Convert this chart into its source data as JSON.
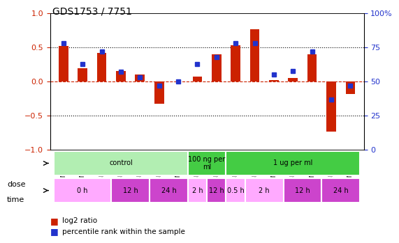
{
  "title": "GDS1753 / 7751",
  "samples": [
    "GSM93635",
    "GSM93638",
    "GSM93649",
    "GSM93641",
    "GSM93644",
    "GSM93645",
    "GSM93650",
    "GSM93646",
    "GSM93648",
    "GSM93642",
    "GSM93643",
    "GSM93639",
    "GSM93647",
    "GSM93637",
    "GSM93640",
    "GSM93636"
  ],
  "log2_ratio": [
    0.52,
    0.2,
    0.42,
    0.15,
    0.1,
    -0.33,
    0.0,
    0.07,
    0.4,
    0.53,
    0.77,
    0.02,
    0.05,
    0.4,
    -0.73,
    -0.18
  ],
  "pct_rank": [
    78,
    63,
    72,
    57,
    53,
    47,
    50,
    63,
    68,
    78,
    78,
    55,
    58,
    72,
    37,
    47
  ],
  "dose_groups": [
    {
      "label": "control",
      "start": 0,
      "end": 7,
      "color": "#b2eeb2"
    },
    {
      "label": "100 ng per\nml",
      "start": 7,
      "end": 9,
      "color": "#44cc44"
    },
    {
      "label": "1 ug per ml",
      "start": 9,
      "end": 16,
      "color": "#44cc44"
    }
  ],
  "time_groups": [
    {
      "label": "0 h",
      "start": 0,
      "end": 3,
      "color": "#ffaaff"
    },
    {
      "label": "12 h",
      "start": 3,
      "end": 5,
      "color": "#cc44cc"
    },
    {
      "label": "24 h",
      "start": 5,
      "end": 7,
      "color": "#cc44cc"
    },
    {
      "label": "2 h",
      "start": 7,
      "end": 8,
      "color": "#ffaaff"
    },
    {
      "label": "12 h",
      "start": 8,
      "end": 9,
      "color": "#cc44cc"
    },
    {
      "label": "0.5 h",
      "start": 9,
      "end": 10,
      "color": "#ffaaff"
    },
    {
      "label": "2 h",
      "start": 10,
      "end": 12,
      "color": "#ffaaff"
    },
    {
      "label": "12 h",
      "start": 12,
      "end": 14,
      "color": "#cc44cc"
    },
    {
      "label": "24 h",
      "start": 14,
      "end": 16,
      "color": "#cc44cc"
    }
  ],
  "bar_color": "#cc2200",
  "dot_color": "#2233cc",
  "ylim": [
    -1,
    1
  ],
  "y2lim": [
    0,
    100
  ],
  "yticks": [
    -1,
    -0.5,
    0,
    0.5,
    1
  ],
  "y2ticks": [
    0,
    25,
    50,
    75,
    100
  ],
  "hlines": [
    0.5,
    -0.5
  ],
  "bar_width": 0.5
}
